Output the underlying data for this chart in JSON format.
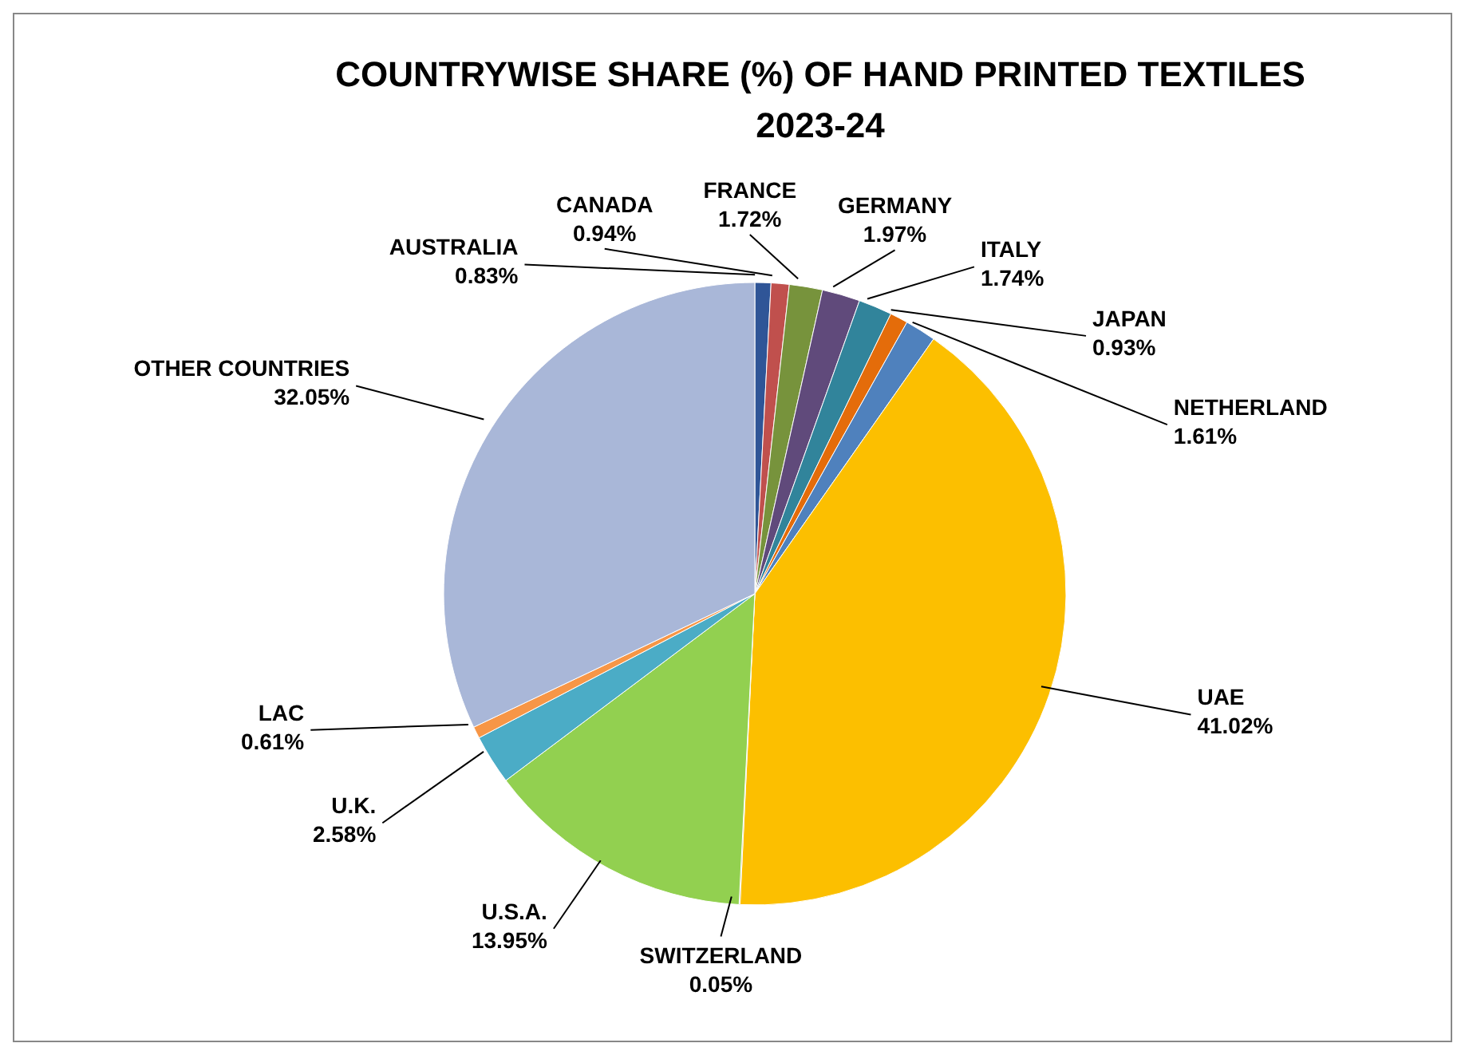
{
  "chart_data": {
    "type": "pie",
    "title": "COUNTRYWISE SHARE (%) OF HAND PRINTED TEXTILES\n2023-24",
    "categories": [
      "AUSTRALIA",
      "CANADA",
      "FRANCE",
      "GERMANY",
      "ITALY",
      "JAPAN",
      "NETHERLAND",
      "UAE",
      "SWITZERLAND",
      "U.S.A.",
      "U.K.",
      "LAC",
      "OTHER COUNTRIES"
    ],
    "values": [
      0.83,
      0.94,
      1.72,
      1.97,
      1.74,
      0.93,
      1.61,
      41.02,
      0.05,
      13.95,
      2.58,
      0.61,
      32.05
    ],
    "value_labels": [
      "0.83%",
      "0.94%",
      "1.72%",
      "1.97%",
      "1.74%",
      "0.93%",
      "1.61%",
      "41.02%",
      "0.05%",
      "13.95%",
      "2.58%",
      "0.61%",
      "32.05%"
    ],
    "colors": [
      "#2f5597",
      "#c0504d",
      "#77933c",
      "#604a7b",
      "#31849b",
      "#e46c0a",
      "#4f81bd",
      "#fcbf00",
      "#9a6a00",
      "#92d050",
      "#4bacc6",
      "#f79646",
      "#a9b7d8"
    ]
  }
}
